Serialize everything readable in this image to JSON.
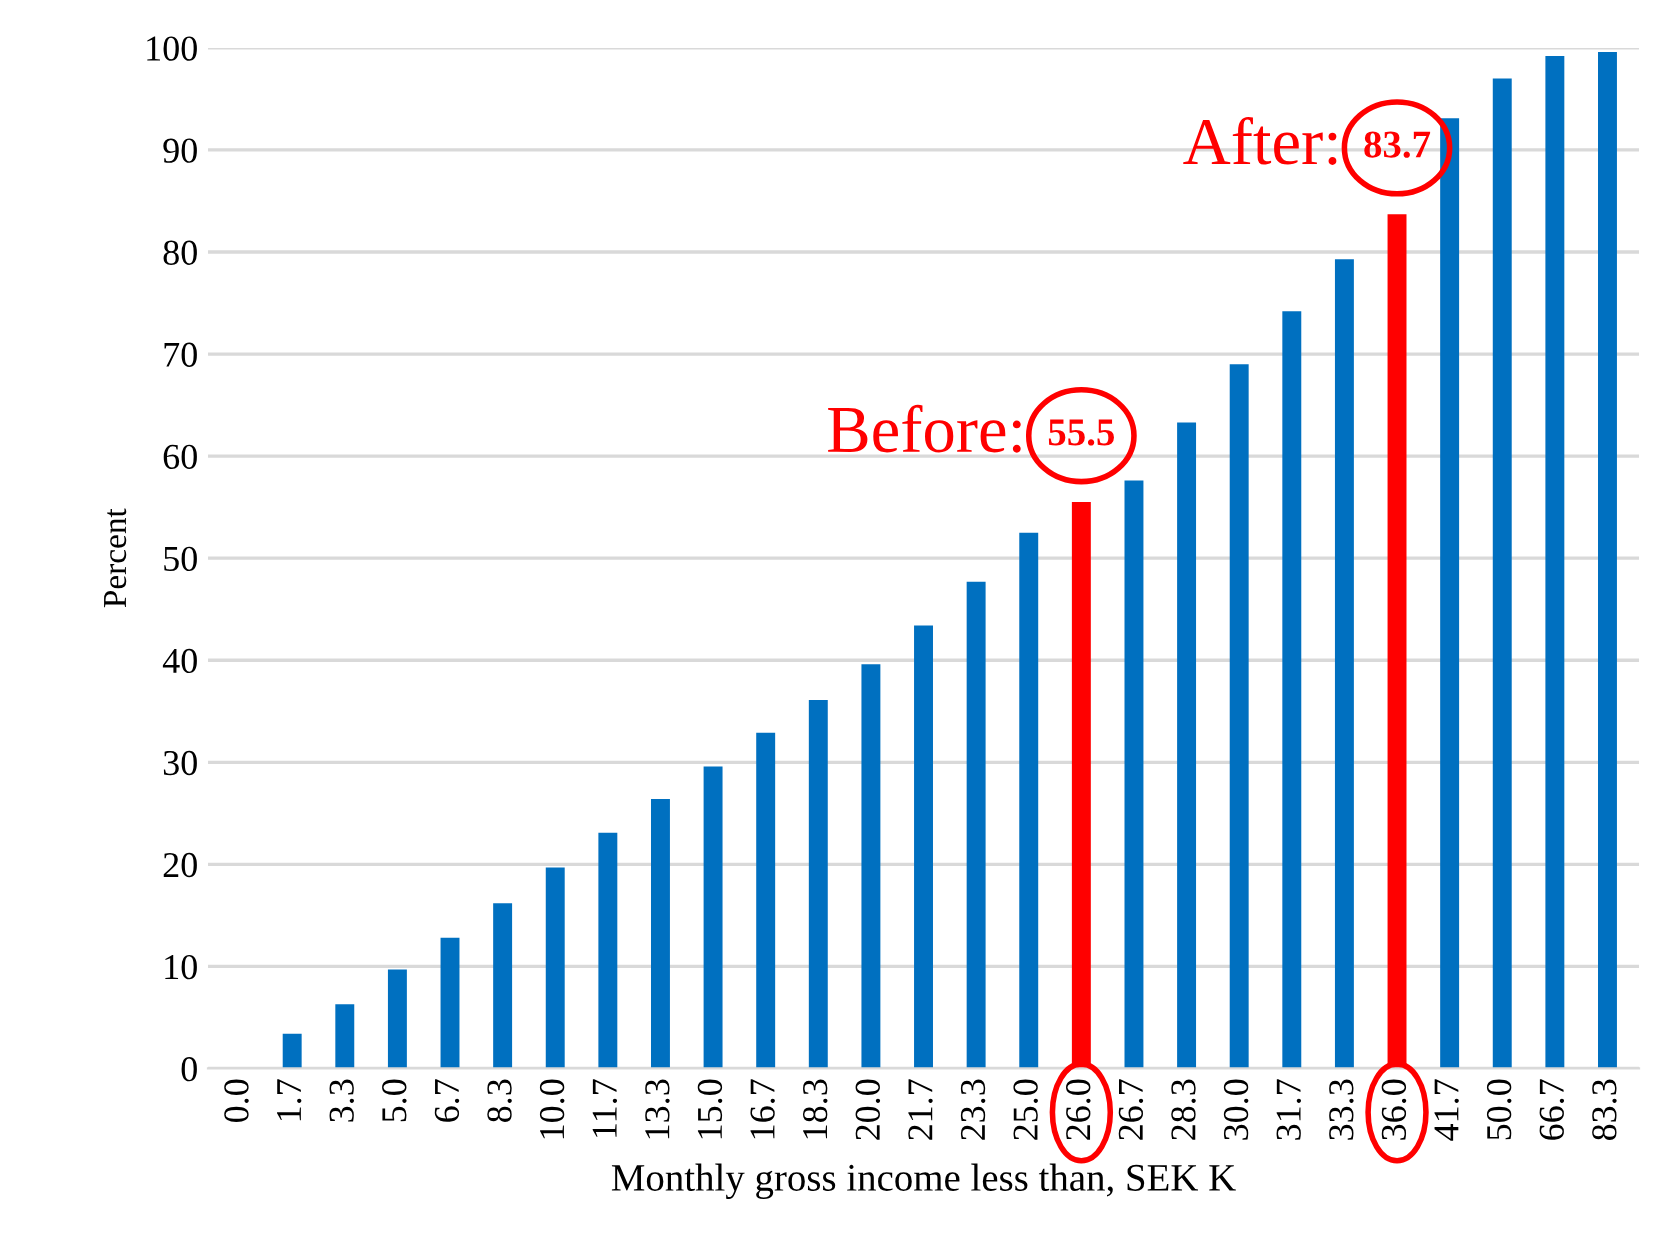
{
  "chart_data": {
    "type": "bar",
    "xlabel": "Monthly gross income less than, SEK K",
    "ylabel": "Percent",
    "categories": [
      "0.0",
      "1.7",
      "3.3",
      "5.0",
      "6.7",
      "8.3",
      "10.0",
      "11.7",
      "13.3",
      "15.0",
      "16.7",
      "18.3",
      "20.0",
      "21.7",
      "23.3",
      "25.0",
      "26.0",
      "26.7",
      "28.3",
      "30.0",
      "31.7",
      "33.3",
      "36.0",
      "41.7",
      "50.0",
      "66.7",
      "83.3"
    ],
    "values": [
      0,
      3.4,
      6.3,
      9.7,
      12.8,
      16.2,
      19.7,
      23.1,
      26.4,
      29.6,
      32.9,
      36.1,
      39.6,
      43.4,
      47.7,
      52.5,
      55.5,
      57.6,
      63.3,
      69.0,
      74.2,
      79.3,
      83.7,
      93.1,
      97.0,
      99.2,
      99.6
    ],
    "colors": [
      "#0070c0",
      "#0070c0",
      "#0070c0",
      "#0070c0",
      "#0070c0",
      "#0070c0",
      "#0070c0",
      "#0070c0",
      "#0070c0",
      "#0070c0",
      "#0070c0",
      "#0070c0",
      "#0070c0",
      "#0070c0",
      "#0070c0",
      "#0070c0",
      "#ff0000",
      "#0070c0",
      "#0070c0",
      "#0070c0",
      "#0070c0",
      "#0070c0",
      "#ff0000",
      "#0070c0",
      "#0070c0",
      "#0070c0",
      "#0070c0"
    ],
    "value_labels": [
      null,
      null,
      null,
      null,
      null,
      null,
      null,
      null,
      null,
      null,
      null,
      null,
      null,
      null,
      null,
      null,
      "55.5",
      null,
      null,
      null,
      null,
      null,
      "83.7",
      null,
      null,
      null,
      null
    ],
    "annotations": [
      {
        "text": "Before:",
        "x": "26.0",
        "y": 55.5
      },
      {
        "text": "After:",
        "x": "36.0",
        "y": 83.7
      }
    ],
    "ylim": [
      0,
      100
    ],
    "yticks": [
      0,
      10,
      20,
      30,
      40,
      50,
      60,
      70,
      80,
      90,
      100
    ],
    "grid": "y",
    "legend": false
  }
}
